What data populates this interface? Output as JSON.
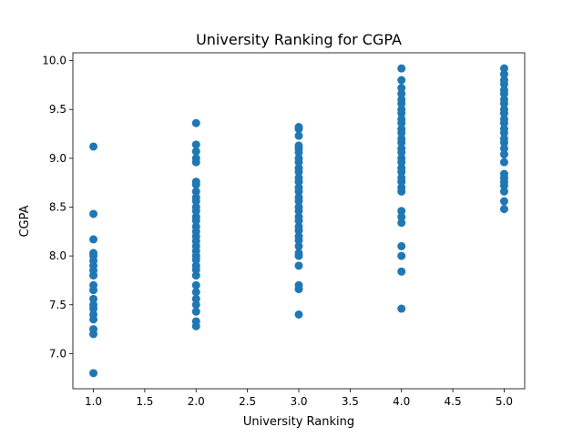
{
  "chart_data": {
    "type": "scatter",
    "title": "University Ranking for CGPA",
    "xlabel": "University Ranking",
    "ylabel": "CGPA",
    "xlim": [
      0.8,
      5.2
    ],
    "ylim": [
      6.64,
      10.08
    ],
    "xticks": [
      "1.0",
      "1.5",
      "2.0",
      "2.5",
      "3.0",
      "3.5",
      "4.0",
      "4.5",
      "5.0"
    ],
    "yticks": [
      "7.0",
      "7.5",
      "8.0",
      "8.5",
      "9.0",
      "9.5",
      "10.0"
    ],
    "grid": false,
    "marker_color": "#1f77b4",
    "series": [
      {
        "points": [
          [
            1,
            6.8
          ],
          [
            1,
            7.2
          ],
          [
            1,
            7.25
          ],
          [
            1,
            7.35
          ],
          [
            1,
            7.4
          ],
          [
            1,
            7.46
          ],
          [
            1,
            7.5
          ],
          [
            1,
            7.56
          ],
          [
            1,
            7.65
          ],
          [
            1,
            7.7
          ],
          [
            1,
            7.8
          ],
          [
            1,
            7.85
          ],
          [
            1,
            7.9
          ],
          [
            1,
            7.95
          ],
          [
            1,
            8.0
          ],
          [
            1,
            8.03
          ],
          [
            1,
            8.17
          ],
          [
            1,
            8.43
          ],
          [
            1,
            9.12
          ],
          [
            2,
            7.28
          ],
          [
            2,
            7.33
          ],
          [
            2,
            7.43
          ],
          [
            2,
            7.5
          ],
          [
            2,
            7.56
          ],
          [
            2,
            7.63
          ],
          [
            2,
            7.7
          ],
          [
            2,
            7.8
          ],
          [
            2,
            7.86
          ],
          [
            2,
            7.9
          ],
          [
            2,
            7.96
          ],
          [
            2,
            8.0
          ],
          [
            2,
            8.05
          ],
          [
            2,
            8.1
          ],
          [
            2,
            8.15
          ],
          [
            2,
            8.2
          ],
          [
            2,
            8.25
          ],
          [
            2,
            8.3
          ],
          [
            2,
            8.36
          ],
          [
            2,
            8.4
          ],
          [
            2,
            8.46
          ],
          [
            2,
            8.5
          ],
          [
            2,
            8.56
          ],
          [
            2,
            8.6
          ],
          [
            2,
            8.66
          ],
          [
            2,
            8.73
          ],
          [
            2,
            8.76
          ],
          [
            2,
            8.96
          ],
          [
            2,
            9.0
          ],
          [
            2,
            9.07
          ],
          [
            2,
            9.14
          ],
          [
            2,
            9.36
          ],
          [
            3,
            7.4
          ],
          [
            3,
            7.66
          ],
          [
            3,
            7.7
          ],
          [
            3,
            7.9
          ],
          [
            3,
            8.0
          ],
          [
            3,
            8.03
          ],
          [
            3,
            8.1
          ],
          [
            3,
            8.16
          ],
          [
            3,
            8.2
          ],
          [
            3,
            8.26
          ],
          [
            3,
            8.3
          ],
          [
            3,
            8.36
          ],
          [
            3,
            8.4
          ],
          [
            3,
            8.46
          ],
          [
            3,
            8.5
          ],
          [
            3,
            8.56
          ],
          [
            3,
            8.6
          ],
          [
            3,
            8.66
          ],
          [
            3,
            8.7
          ],
          [
            3,
            8.76
          ],
          [
            3,
            8.8
          ],
          [
            3,
            8.86
          ],
          [
            3,
            8.9
          ],
          [
            3,
            8.96
          ],
          [
            3,
            9.0
          ],
          [
            3,
            9.06
          ],
          [
            3,
            9.1
          ],
          [
            3,
            9.13
          ],
          [
            3,
            9.23
          ],
          [
            3,
            9.3
          ],
          [
            3,
            9.32
          ],
          [
            4,
            7.46
          ],
          [
            4,
            7.84
          ],
          [
            4,
            8.0
          ],
          [
            4,
            8.1
          ],
          [
            4,
            8.34
          ],
          [
            4,
            8.4
          ],
          [
            4,
            8.46
          ],
          [
            4,
            8.66
          ],
          [
            4,
            8.7
          ],
          [
            4,
            8.76
          ],
          [
            4,
            8.8
          ],
          [
            4,
            8.86
          ],
          [
            4,
            8.9
          ],
          [
            4,
            8.96
          ],
          [
            4,
            9.0
          ],
          [
            4,
            9.06
          ],
          [
            4,
            9.1
          ],
          [
            4,
            9.16
          ],
          [
            4,
            9.2
          ],
          [
            4,
            9.26
          ],
          [
            4,
            9.3
          ],
          [
            4,
            9.36
          ],
          [
            4,
            9.4
          ],
          [
            4,
            9.46
          ],
          [
            4,
            9.5
          ],
          [
            4,
            9.56
          ],
          [
            4,
            9.6
          ],
          [
            4,
            9.66
          ],
          [
            4,
            9.72
          ],
          [
            4,
            9.8
          ],
          [
            4,
            9.92
          ],
          [
            5,
            8.48
          ],
          [
            5,
            8.56
          ],
          [
            5,
            8.66
          ],
          [
            5,
            8.72
          ],
          [
            5,
            8.76
          ],
          [
            5,
            8.8
          ],
          [
            5,
            8.84
          ],
          [
            5,
            8.96
          ],
          [
            5,
            9.04
          ],
          [
            5,
            9.1
          ],
          [
            5,
            9.16
          ],
          [
            5,
            9.2
          ],
          [
            5,
            9.26
          ],
          [
            5,
            9.3
          ],
          [
            5,
            9.36
          ],
          [
            5,
            9.4
          ],
          [
            5,
            9.46
          ],
          [
            5,
            9.5
          ],
          [
            5,
            9.56
          ],
          [
            5,
            9.6
          ],
          [
            5,
            9.66
          ],
          [
            5,
            9.7
          ],
          [
            5,
            9.76
          ],
          [
            5,
            9.8
          ],
          [
            5,
            9.86
          ],
          [
            5,
            9.92
          ]
        ]
      }
    ]
  }
}
